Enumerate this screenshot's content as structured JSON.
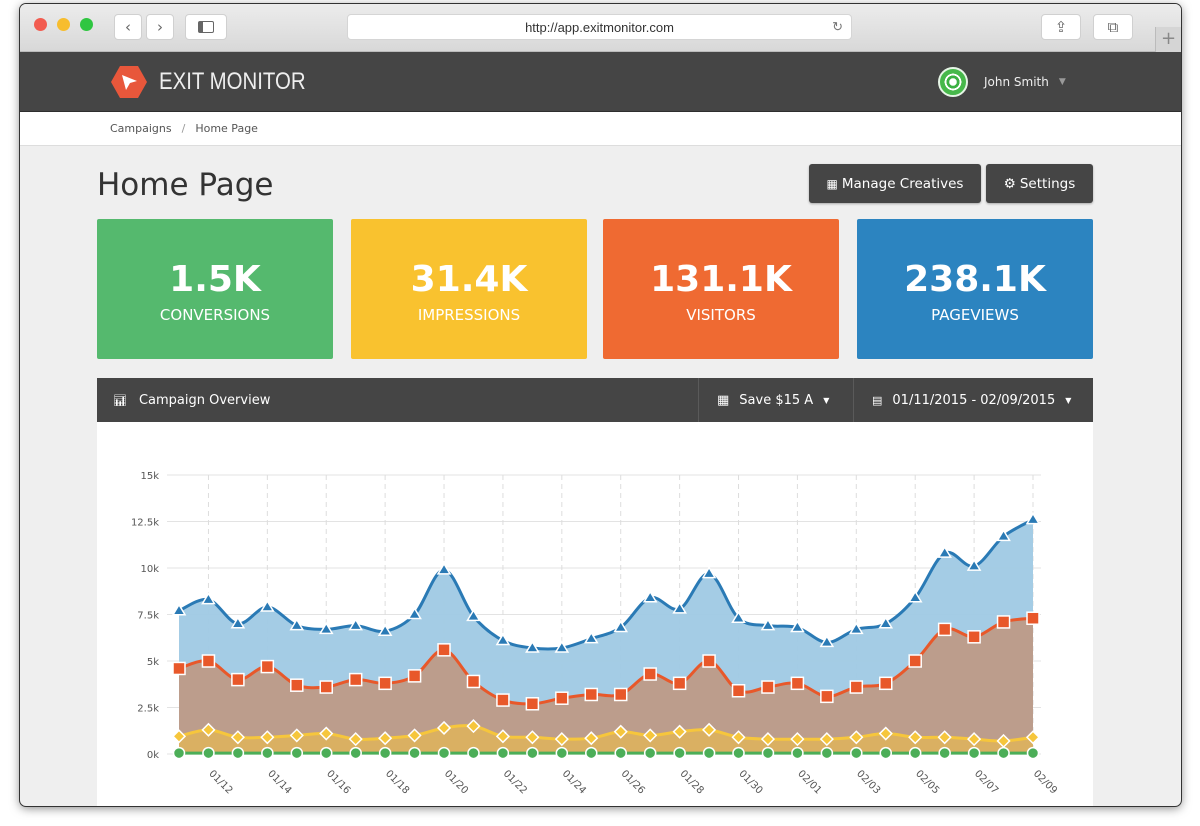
{
  "browser": {
    "url": "http://app.exitmonitor.com",
    "back_icon": "chevron-left-icon",
    "forward_icon": "chevron-right-icon",
    "sidebar_icon": "sidebar-icon",
    "share_icon": "share-icon",
    "tabs_icon": "tabs-icon",
    "reload_icon": "reload-icon",
    "new_tab": "+"
  },
  "navbar": {
    "brand": "EXIT MONITOR",
    "user": "John Smith"
  },
  "breadcrumb": [
    "Campaigns",
    "Home Page"
  ],
  "page": {
    "title": "Home Page",
    "manage_label": "Manage Creatives",
    "settings_label": "Settings"
  },
  "stats": [
    {
      "value": "1.5K",
      "label": "CONVERSIONS",
      "color": "#55b96e"
    },
    {
      "value": "31.4K",
      "label": "IMPRESSIONS",
      "color": "#f9c22f"
    },
    {
      "value": "131.1K",
      "label": "VISITORS",
      "color": "#ef6a32"
    },
    {
      "value": "238.1K",
      "label": "PAGEVIEWS",
      "color": "#2c84c0"
    }
  ],
  "panel": {
    "title": "Campaign Overview",
    "campaign": "Save $15 A",
    "date_range": "01/11/2015 - 02/09/2015"
  },
  "chart_data": {
    "type": "area",
    "ylim": [
      0,
      15000
    ],
    "yticks": [
      "0k",
      "2.5k",
      "5k",
      "7.5k",
      "10k",
      "12.5k",
      "15k"
    ],
    "x": [
      "01/11",
      "01/12",
      "01/13",
      "01/14",
      "01/15",
      "01/16",
      "01/17",
      "01/18",
      "01/19",
      "01/20",
      "01/21",
      "01/22",
      "01/23",
      "01/24",
      "01/25",
      "01/26",
      "01/27",
      "01/28",
      "01/29",
      "01/30",
      "01/31",
      "02/01",
      "02/02",
      "02/03",
      "02/04",
      "02/05",
      "02/06",
      "02/07",
      "02/08",
      "02/09"
    ],
    "xticks": [
      "01/12",
      "01/14",
      "01/16",
      "01/18",
      "01/20",
      "01/22",
      "01/24",
      "01/26",
      "01/28",
      "01/30",
      "02/01",
      "02/03",
      "02/05",
      "02/07",
      "02/09"
    ],
    "grid": true,
    "series": [
      {
        "color": "#2a7ab5",
        "fill": "#9fc9e4",
        "marker": "triangle",
        "values": [
          7700,
          8300,
          7000,
          7900,
          6900,
          6700,
          6900,
          6600,
          7500,
          9900,
          7400,
          6100,
          5700,
          5700,
          6200,
          6800,
          8400,
          7800,
          9700,
          7300,
          6900,
          6800,
          6000,
          6700,
          7000,
          8400,
          10800,
          10100,
          11700,
          12600
        ]
      },
      {
        "color": "#e8582a",
        "fill": "#be9a87",
        "marker": "square",
        "values": [
          4600,
          5000,
          4000,
          4700,
          3700,
          3600,
          4000,
          3800,
          4200,
          5600,
          3900,
          2900,
          2700,
          3000,
          3200,
          3200,
          4300,
          3800,
          5000,
          3400,
          3600,
          3800,
          3100,
          3600,
          3800,
          5000,
          6700,
          6300,
          7100,
          7300
        ]
      },
      {
        "color": "#f6c63c",
        "fill": "#dbb160",
        "marker": "diamond",
        "values": [
          950,
          1300,
          900,
          900,
          1000,
          1100,
          800,
          850,
          1000,
          1400,
          1500,
          950,
          900,
          800,
          850,
          1200,
          1000,
          1200,
          1300,
          900,
          800,
          800,
          800,
          900,
          1100,
          900,
          900,
          800,
          700,
          900
        ]
      },
      {
        "color": "#4cae58",
        "fill": "#4cae58",
        "marker": "circle",
        "values": [
          50,
          50,
          50,
          50,
          50,
          50,
          50,
          50,
          50,
          50,
          50,
          50,
          50,
          50,
          50,
          50,
          50,
          50,
          50,
          50,
          50,
          50,
          50,
          50,
          50,
          50,
          50,
          50,
          50,
          50
        ]
      }
    ]
  }
}
